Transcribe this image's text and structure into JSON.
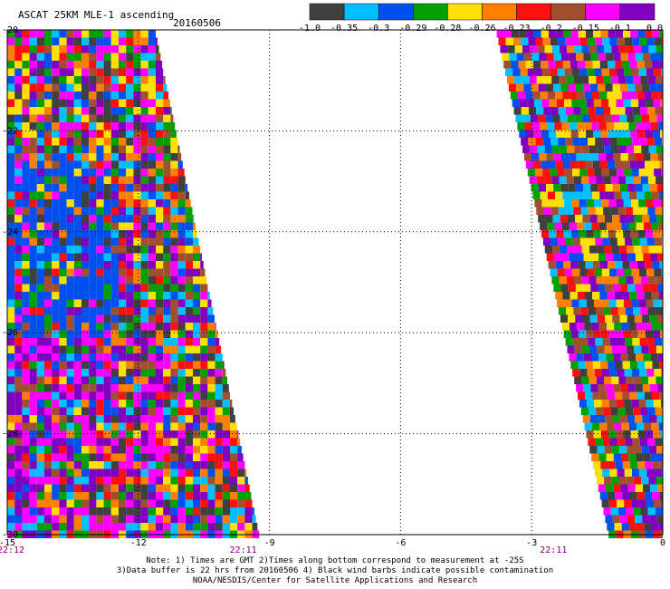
{
  "chart_data": {
    "type": "heatmap",
    "title": "ASCAT 25KM MLE-1 ascending",
    "date": "20160506",
    "x_ticks": [
      {
        "value": -15,
        "label": "-15"
      },
      {
        "value": -12,
        "label": "-12"
      },
      {
        "value": -9,
        "label": "-9"
      },
      {
        "value": -6,
        "label": "-6"
      },
      {
        "value": -3,
        "label": "-3"
      },
      {
        "value": 0,
        "label": "0"
      }
    ],
    "y_ticks": [
      {
        "value": -20,
        "label": "-20"
      },
      {
        "value": -22,
        "label": "-22"
      },
      {
        "value": -24,
        "label": "-24"
      },
      {
        "value": -26,
        "label": "-26"
      },
      {
        "value": -28,
        "label": "-28"
      },
      {
        "value": -30,
        "label": "-30"
      }
    ],
    "xlim": [
      -15,
      0
    ],
    "ylim": [
      -30,
      -20
    ],
    "grid": true,
    "time_labels": [
      {
        "x": -15,
        "label": "22:12"
      },
      {
        "x": -9.6,
        "label": "22:11"
      },
      {
        "x": -2.5,
        "label": "22:11"
      }
    ],
    "colorbar": {
      "position": "top-right",
      "colors": [
        "#404040",
        "#00bfff",
        "#0050f0",
        "#00a000",
        "#ffe000",
        "#ff8000",
        "#ff1010",
        "#a05030",
        "#ff00ff",
        "#8000c0"
      ],
      "labels": [
        "-1.0",
        "-0.35",
        "-0.3",
        "-0.29",
        "-0.28",
        "-0.26",
        "-0.23",
        "-0.2",
        "-0.15",
        "-0.1",
        "0.0"
      ]
    },
    "swaths": [
      {
        "name": "west",
        "lat_start": -20.0,
        "lat_end": -30.0,
        "lon_west": -15.0,
        "lon_east_start": -11.6,
        "lon_east_end": -9.2
      },
      {
        "name": "east",
        "lat_start": -20.0,
        "lat_end": -30.0,
        "lon_west_start": -3.8,
        "lon_west_end": -1.2,
        "lon_east": 0.0
      }
    ]
  },
  "notes": [
    "Note: 1) Times are GMT 2)Times along bottom correspond to measurement at -25S",
    "3)Data buffer is 22 hrs from 20160506 4) Black wind barbs indicate possible contamination",
    "NOAA/NESDIS/Center for Satellite Applications and Research"
  ]
}
